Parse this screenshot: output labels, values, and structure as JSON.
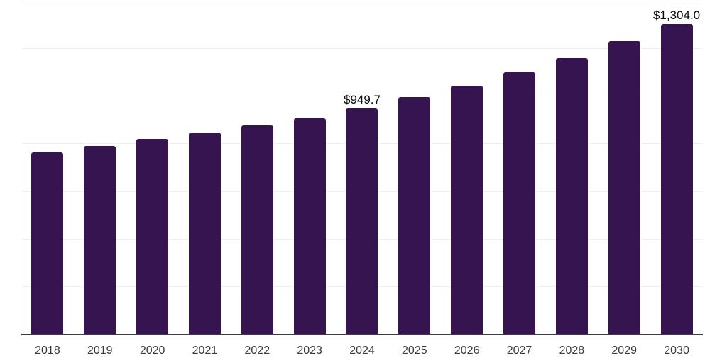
{
  "chart_data": {
    "type": "bar",
    "title": "",
    "xlabel": "",
    "ylabel": "",
    "categories": [
      "2018",
      "2019",
      "2020",
      "2021",
      "2022",
      "2023",
      "2024",
      "2025",
      "2026",
      "2027",
      "2028",
      "2029",
      "2030"
    ],
    "values": [
      766,
      791,
      821,
      849,
      878,
      910,
      949.7,
      998,
      1045,
      1103,
      1162,
      1232,
      1304
    ],
    "data_labels": [
      "",
      "",
      "",
      "",
      "",
      "",
      "$949.7",
      "",
      "",
      "",
      "",
      "",
      "$1,304.0"
    ],
    "ylim": [
      0,
      1400
    ],
    "gridline_step": 200,
    "grid": "horizontal",
    "legend": "none",
    "y_tick_labels_visible": false
  },
  "colors": {
    "bar": "#361450",
    "gridline": "#f0f0f1",
    "axis": "#3d3d3d",
    "tick_label": "#3b3b3b",
    "data_label": "#0a0a0a",
    "background": "#ffffff"
  }
}
